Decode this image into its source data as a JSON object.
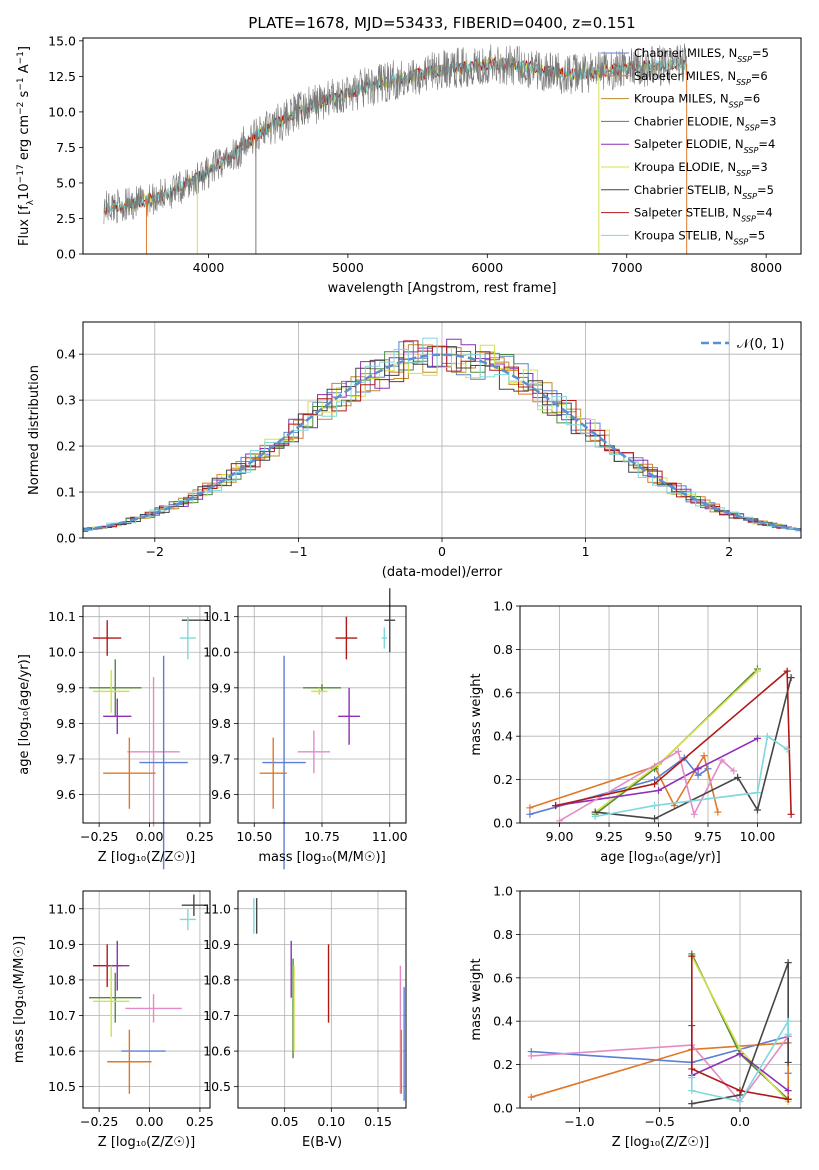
{
  "figure": {
    "title": "PLATE=1678, MJD=53433, FIBERID=0400, z=0.151"
  },
  "colors": {
    "Chabrier MILES": "#5b7fd4",
    "Salpeter MILES": "#e0782a",
    "Kroupa MILES": "#c08a2a",
    "Chabrier ELODIE": "#4f8a3a",
    "Salpeter ELODIE": "#8e2fb8",
    "Kroupa ELODIE": "#d4e04a",
    "Chabrier STELIB": "#454545",
    "Salpeter STELIB": "#b01818",
    "Kroupa STELIB": "#7fd8dc",
    "pink": "#e58ac8",
    "gaussian": "#5b8fd4"
  },
  "chart_data": [
    {
      "id": "spectrum",
      "type": "line",
      "xlabel": "wavelength [Angstrom, rest frame]",
      "ylabel": "Flux [f",
      "ylabel_parts": [
        "Flux [f",
        "λ",
        "10",
        "−17",
        " erg cm",
        "−2",
        " s",
        "−1",
        " A",
        "−1",
        "]"
      ],
      "xlim": [
        3100,
        8250
      ],
      "ylim": [
        0,
        15.2
      ],
      "xticks": [
        4000,
        5000,
        6000,
        7000,
        8000
      ],
      "xtick_labels": [
        "4000",
        "5000",
        "6000",
        "7000",
        "8000"
      ],
      "yticks": [
        0.0,
        2.5,
        5.0,
        7.5,
        10.0,
        12.5,
        15.0
      ],
      "ytick_labels": [
        "0.0",
        "2.5",
        "5.0",
        "7.5",
        "10.0",
        "12.5",
        "15.0"
      ],
      "grid": false,
      "legend_position": "top-right",
      "continuum": {
        "x": [
          3250,
          3400,
          3600,
          3800,
          4000,
          4200,
          4400,
          4600,
          4800,
          5000,
          5200,
          5400,
          5600,
          5800,
          6000,
          6200,
          6400,
          6600,
          6800,
          7000,
          7200,
          7400
        ],
        "y": [
          3.3,
          3.4,
          3.9,
          4.6,
          5.8,
          7.2,
          8.7,
          9.8,
          10.7,
          11.3,
          11.9,
          12.4,
          12.8,
          13.1,
          13.4,
          13.3,
          12.9,
          12.6,
          12.8,
          13.1,
          13.2,
          13.4
        ]
      },
      "series": [
        {
          "name": "Chabrier MILES",
          "nssp": "5",
          "color_key": "Chabrier MILES"
        },
        {
          "name": "Salpeter MILES",
          "nssp": "6",
          "color_key": "Salpeter MILES"
        },
        {
          "name": "Kroupa MILES",
          "nssp": "6",
          "color_key": "Kroupa MILES"
        },
        {
          "name": "Chabrier ELODIE",
          "nssp": "3",
          "color_key": "Chabrier ELODIE"
        },
        {
          "name": "Salpeter ELODIE",
          "nssp": "4",
          "color_key": "Salpeter ELODIE"
        },
        {
          "name": "Kroupa ELODIE",
          "nssp": "3",
          "color_key": "Kroupa ELODIE"
        },
        {
          "name": "Chabrier STELIB",
          "nssp": "5",
          "color_key": "Chabrier STELIB"
        },
        {
          "name": "Salpeter STELIB",
          "nssp": "4",
          "color_key": "Salpeter STELIB"
        },
        {
          "name": "Kroupa STELIB",
          "nssp": "5",
          "color_key": "Kroupa STELIB"
        }
      ]
    },
    {
      "id": "residuals",
      "type": "histogram",
      "xlabel": "(data-model)/error",
      "ylabel": "Normed distribution",
      "xlim": [
        -2.5,
        2.5
      ],
      "ylim": [
        0,
        0.47
      ],
      "xticks": [
        -2,
        -1,
        0,
        1,
        2
      ],
      "xtick_labels": [
        "−2",
        "−1",
        "0",
        "1",
        "2"
      ],
      "yticks": [
        0.0,
        0.1,
        0.2,
        0.3,
        0.4
      ],
      "ytick_labels": [
        "0.0",
        "0.1",
        "0.2",
        "0.3",
        "0.4"
      ],
      "grid": true,
      "legend_position": "top-right",
      "gaussian_label": "𝒩(0, 1)",
      "bin_width": 0.1
    },
    {
      "id": "age-vs-Z",
      "type": "scatter",
      "xlabel": "Z [log₁₀(Z/Z☉)]",
      "ylabel": "age  [log₁₀(age/yr)]",
      "xlim": [
        -0.33,
        0.3
      ],
      "ylim": [
        9.52,
        10.13
      ],
      "xticks": [
        -0.25,
        0.0,
        0.25
      ],
      "xtick_labels": [
        "−0.25",
        "0.00",
        "0.25"
      ],
      "yticks": [
        9.6,
        9.7,
        9.8,
        9.9,
        10.0,
        10.1
      ],
      "ytick_labels": [
        "9.6",
        "9.7",
        "9.8",
        "9.9",
        "10.0",
        "10.1"
      ],
      "grid": true,
      "points": [
        {
          "c": "Chabrier STELIB",
          "x": 0.22,
          "y": 10.09,
          "xe": 0.06,
          "ye": 0.0
        },
        {
          "c": "Kroupa STELIB",
          "x": 0.19,
          "y": 10.04,
          "xe": 0.04,
          "ye": 0.06
        },
        {
          "c": "Salpeter STELIB",
          "x": -0.21,
          "y": 10.04,
          "xe": 0.07,
          "ye": 0.05
        },
        {
          "c": "Chabrier ELODIE",
          "x": -0.17,
          "y": 9.9,
          "xe": 0.13,
          "ye": 0.08
        },
        {
          "c": "Kroupa ELODIE",
          "x": -0.19,
          "y": 9.89,
          "xe": 0.09,
          "ye": 0.06
        },
        {
          "c": "Salpeter ELODIE",
          "x": -0.16,
          "y": 9.82,
          "xe": 0.07,
          "ye": 0.05
        },
        {
          "c": "pink",
          "x": 0.02,
          "y": 9.72,
          "xe": 0.13,
          "ye": 0.21
        },
        {
          "c": "Chabrier MILES",
          "x": 0.07,
          "y": 9.69,
          "xe": 0.12,
          "ye": 0.3
        },
        {
          "c": "Salpeter MILES",
          "x": -0.1,
          "y": 9.66,
          "xe": 0.13,
          "ye": 0.1
        }
      ]
    },
    {
      "id": "age-vs-mass",
      "type": "scatter",
      "xlabel": "mass [log₁₀(M/M☉)]",
      "ylabel": "",
      "xlim": [
        10.44,
        11.06
      ],
      "ylim": [
        9.52,
        10.13
      ],
      "xticks": [
        10.5,
        10.75,
        11.0
      ],
      "xtick_labels": [
        "10.50",
        "10.75",
        "11.00"
      ],
      "yticks": [
        9.6,
        9.7,
        9.8,
        9.9,
        10.0,
        10.1
      ],
      "ytick_labels": [
        "9.6",
        "9.7",
        "9.8",
        "9.9",
        "10.0",
        "10.1"
      ],
      "grid": true,
      "points": [
        {
          "c": "Chabrier STELIB",
          "x": 11.0,
          "y": 10.09,
          "xe": 0.02,
          "ye": 0.09
        },
        {
          "c": "Kroupa STELIB",
          "x": 10.98,
          "y": 10.04,
          "xe": 0.01,
          "ye": 0.03
        },
        {
          "c": "Salpeter STELIB",
          "x": 10.84,
          "y": 10.04,
          "xe": 0.04,
          "ye": 0.06
        },
        {
          "c": "Chabrier ELODIE",
          "x": 10.75,
          "y": 9.9,
          "xe": 0.07,
          "ye": 0.01
        },
        {
          "c": "Kroupa ELODIE",
          "x": 10.74,
          "y": 9.89,
          "xe": 0.03,
          "ye": 0.01
        },
        {
          "c": "Salpeter ELODIE",
          "x": 10.85,
          "y": 9.82,
          "xe": 0.04,
          "ye": 0.08
        },
        {
          "c": "pink",
          "x": 10.72,
          "y": 9.72,
          "xe": 0.06,
          "ye": 0.06
        },
        {
          "c": "Chabrier MILES",
          "x": 10.61,
          "y": 9.69,
          "xe": 0.08,
          "ye": 0.3
        },
        {
          "c": "Salpeter MILES",
          "x": 10.57,
          "y": 9.66,
          "xe": 0.05,
          "ye": 0.1
        }
      ]
    },
    {
      "id": "weight-vs-age",
      "type": "line",
      "xlabel": "age  [log₁₀(age/yr)]",
      "ylabel": "mass weight",
      "xlim": [
        8.8,
        10.22
      ],
      "ylim": [
        0,
        1.0
      ],
      "xticks": [
        9.0,
        9.25,
        9.5,
        9.75,
        10.0
      ],
      "xtick_labels": [
        "9.00",
        "9.25",
        "9.50",
        "9.75",
        "10.00"
      ],
      "yticks": [
        0.0,
        0.2,
        0.4,
        0.6,
        0.8,
        1.0
      ],
      "ytick_labels": [
        "0.0",
        "0.2",
        "0.4",
        "0.6",
        "0.8",
        "1.0"
      ],
      "grid": true,
      "series": [
        {
          "c": "Chabrier MILES",
          "x": [
            8.85,
            9.48,
            9.63,
            9.7,
            9.75
          ],
          "y": [
            0.04,
            0.2,
            0.3,
            0.22,
            0.25
          ]
        },
        {
          "c": "Salpeter MILES",
          "x": [
            8.85,
            9.48,
            9.58,
            9.73,
            9.8
          ],
          "y": [
            0.07,
            0.26,
            0.08,
            0.31,
            0.05
          ]
        },
        {
          "c": "Chabrier ELODIE",
          "x": [
            9.18,
            9.48,
            10.0
          ],
          "y": [
            0.04,
            0.25,
            0.71
          ]
        },
        {
          "c": "Kroupa ELODIE",
          "x": [
            9.18,
            9.5,
            10.0
          ],
          "y": [
            0.05,
            0.27,
            0.7
          ]
        },
        {
          "c": "Salpeter ELODIE",
          "x": [
            8.98,
            9.5,
            9.7,
            10.0
          ],
          "y": [
            0.08,
            0.15,
            0.25,
            0.39
          ]
        },
        {
          "c": "pink",
          "x": [
            9.0,
            9.6,
            9.68,
            9.82,
            9.88
          ],
          "y": [
            0.01,
            0.33,
            0.04,
            0.29,
            0.24
          ]
        },
        {
          "c": "Chabrier STELIB",
          "x": [
            9.18,
            9.48,
            9.9,
            10.0,
            10.17
          ],
          "y": [
            0.05,
            0.02,
            0.21,
            0.06,
            0.67
          ]
        },
        {
          "c": "Salpeter STELIB",
          "x": [
            8.98,
            9.48,
            10.15,
            10.17
          ],
          "y": [
            0.08,
            0.18,
            0.7,
            0.04
          ]
        },
        {
          "c": "Kroupa STELIB",
          "x": [
            9.18,
            9.48,
            10.0,
            10.05,
            10.15
          ],
          "y": [
            0.03,
            0.08,
            0.14,
            0.4,
            0.34
          ]
        }
      ]
    },
    {
      "id": "mass-vs-Z",
      "type": "scatter",
      "xlabel": "Z [log₁₀(Z/Z☉)]",
      "ylabel": "mass [log₁₀(M/M☉)]",
      "xlim": [
        -0.33,
        0.3
      ],
      "ylim": [
        10.44,
        11.05
      ],
      "xticks": [
        -0.25,
        0.0,
        0.25
      ],
      "xtick_labels": [
        "−0.25",
        "0.00",
        "0.25"
      ],
      "yticks": [
        10.5,
        10.6,
        10.7,
        10.8,
        10.9,
        11.0
      ],
      "ytick_labels": [
        "10.5",
        "10.6",
        "10.7",
        "10.8",
        "10.9",
        "11.0"
      ],
      "grid": true,
      "points": [
        {
          "c": "Chabrier STELIB",
          "x": 0.22,
          "y": 11.01,
          "xe": 0.06,
          "ye": 0.03
        },
        {
          "c": "Kroupa STELIB",
          "x": 0.19,
          "y": 10.97,
          "xe": 0.04,
          "ye": 0.03
        },
        {
          "c": "Salpeter STELIB",
          "x": -0.21,
          "y": 10.84,
          "xe": 0.07,
          "ye": 0.06
        },
        {
          "c": "Salpeter ELODIE",
          "x": -0.16,
          "y": 10.84,
          "xe": 0.06,
          "ye": 0.07
        },
        {
          "c": "Chabrier ELODIE",
          "x": -0.17,
          "y": 10.75,
          "xe": 0.13,
          "ye": 0.07
        },
        {
          "c": "Kroupa ELODIE",
          "x": -0.19,
          "y": 10.74,
          "xe": 0.09,
          "ye": 0.1
        },
        {
          "c": "pink",
          "x": 0.02,
          "y": 10.72,
          "xe": 0.14,
          "ye": 0.04
        },
        {
          "c": "Chabrier MILES",
          "x": -0.03,
          "y": 10.6,
          "xe": 0.11,
          "ye": 0.0
        },
        {
          "c": "Salpeter MILES",
          "x": -0.1,
          "y": 10.57,
          "xe": 0.11,
          "ye": 0.09
        }
      ]
    },
    {
      "id": "mass-vs-ebv",
      "type": "scatter",
      "xlabel": "E(B-V)",
      "ylabel": "",
      "xlim": [
        0.0,
        0.18
      ],
      "ylim": [
        10.44,
        11.05
      ],
      "xticks": [
        0.05,
        0.1,
        0.15
      ],
      "xtick_labels": [
        "0.05",
        "0.10",
        "0.15"
      ],
      "yticks": [
        10.5,
        10.6,
        10.7,
        10.8,
        10.9,
        11.0
      ],
      "ytick_labels": [
        "10.5",
        "10.6",
        "10.7",
        "10.8",
        "10.9",
        "11.0"
      ],
      "grid": true,
      "points": [
        {
          "c": "Chabrier STELIB",
          "x": 0.02,
          "y": 10.98,
          "xe": 0.0,
          "ye": 0.05
        },
        {
          "c": "Kroupa STELIB",
          "x": 0.017,
          "y": 10.98,
          "xe": 0.0,
          "ye": 0.05
        },
        {
          "c": "Salpeter ELODIE",
          "x": 0.057,
          "y": 10.83,
          "xe": 0.0,
          "ye": 0.08
        },
        {
          "c": "Chabrier ELODIE",
          "x": 0.059,
          "y": 10.72,
          "xe": 0.0,
          "ye": 0.14
        },
        {
          "c": "Kroupa ELODIE",
          "x": 0.06,
          "y": 10.72,
          "xe": 0.0,
          "ye": 0.12
        },
        {
          "c": "Salpeter STELIB",
          "x": 0.097,
          "y": 10.79,
          "xe": 0.0,
          "ye": 0.11
        },
        {
          "c": "pink",
          "x": 0.174,
          "y": 10.66,
          "xe": 0.0,
          "ye": 0.18
        },
        {
          "c": "Salpeter MILES",
          "x": 0.175,
          "y": 10.57,
          "xe": 0.0,
          "ye": 0.09
        },
        {
          "c": "Chabrier MILES",
          "x": 0.178,
          "y": 10.62,
          "xe": 0.0,
          "ye": 0.16
        }
      ]
    },
    {
      "id": "weight-vs-Z",
      "type": "line",
      "xlabel": "Z [log₁₀(Z/Z☉)]",
      "ylabel": "mass weight",
      "xlim": [
        -1.37,
        0.38
      ],
      "ylim": [
        0,
        1.0
      ],
      "xticks": [
        -1.0,
        -0.5,
        0.0
      ],
      "xtick_labels": [
        "−1.0",
        "−0.5",
        "0.0"
      ],
      "yticks": [
        0.0,
        0.2,
        0.4,
        0.6,
        0.8,
        1.0
      ],
      "ytick_labels": [
        "0.0",
        "0.2",
        "0.4",
        "0.6",
        "0.8",
        "1.0"
      ],
      "grid": true,
      "series": [
        {
          "c": "Chabrier MILES",
          "x": [
            -1.3,
            -0.3,
            0.3,
            0.3
          ],
          "y": [
            0.26,
            0.21,
            0.33,
            0.16
          ]
        },
        {
          "c": "Salpeter MILES",
          "x": [
            -1.3,
            -0.3,
            0.3,
            0.3
          ],
          "y": [
            0.05,
            0.27,
            0.3,
            0.04
          ]
        },
        {
          "c": "pink",
          "x": [
            -1.3,
            -0.3,
            0.0,
            0.3
          ],
          "y": [
            0.24,
            0.29,
            0.03,
            0.33
          ]
        },
        {
          "c": "Chabrier ELODIE",
          "x": [
            -0.3,
            0.0,
            0.3
          ],
          "y": [
            0.71,
            0.25,
            0.04
          ]
        },
        {
          "c": "Kroupa ELODIE",
          "x": [
            -0.3,
            0.0,
            0.3
          ],
          "y": [
            0.7,
            0.27,
            0.03
          ]
        },
        {
          "c": "Salpeter ELODIE",
          "x": [
            -0.3,
            -0.3,
            0.0,
            0.3
          ],
          "y": [
            0.38,
            0.15,
            0.25,
            0.08
          ]
        },
        {
          "c": "Chabrier STELIB",
          "x": [
            -0.3,
            0.0,
            0.3,
            0.3
          ],
          "y": [
            0.02,
            0.06,
            0.67,
            0.21
          ]
        },
        {
          "c": "Salpeter STELIB",
          "x": [
            -0.3,
            -0.3,
            0.0,
            0.3
          ],
          "y": [
            0.7,
            0.18,
            0.08,
            0.04
          ]
        },
        {
          "c": "Kroupa STELIB",
          "x": [
            -0.3,
            -0.3,
            0.0,
            0.3,
            0.3
          ],
          "y": [
            0.14,
            0.08,
            0.03,
            0.4,
            0.34
          ]
        }
      ]
    }
  ]
}
